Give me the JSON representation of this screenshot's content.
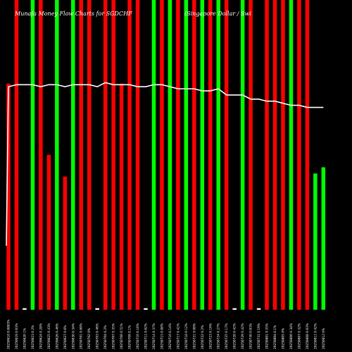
{
  "chart_data": {
    "type": "bar",
    "title_left": "Munafa Money Flow Charts for SGDCHF",
    "title_right": "(Singapore Dollar / Swi",
    "colors": {
      "background": "#000000",
      "up": "#00ff00",
      "down": "#ff0000",
      "line": "#ffffff",
      "text": "#ffffff"
    },
    "ylim": [
      0,
      100
    ],
    "categories": [
      "20250618 0.0003%",
      "20250619 0.63%",
      "20250620 1%",
      "20250623 0.2%",
      "20250624 0.28%",
      "20250625 0.43%",
      "20250626 0.46%",
      "20250627 0.6%",
      "20250630 0.34%",
      "20250701 0.69%",
      "20250702 0%",
      "20250703 0.46%",
      "20250704 0.2%",
      "20250707 0.35%",
      "20250708 0.51%",
      "20250709 0.1%",
      "20250710 0.16%",
      "20250711 0.62%",
      "20250714 0.37%",
      "20250715 0.08%",
      "20250716 0.14%",
      "20250717 0.41%",
      "20250718 0.12%",
      "20250721 0.09%",
      "20250722 0.2%",
      "20250723 0.16%",
      "20250724 0.27%",
      "20250725 0.17%",
      "20250728 0.42%",
      "20250729 0.42%",
      "20250730 0.63%",
      "20250731 0.19%",
      "20250801 0.55%",
      "20250804 0.1%",
      "20250805 0%",
      "20250806 0.34%",
      "20250807 0.32%",
      "20250808 0.63%",
      "20250811 0.42%",
      "20250812 0%"
    ],
    "series": [
      {
        "values": [
          73,
          100,
          0.5,
          100,
          100,
          50,
          100,
          43,
          100,
          100,
          100,
          0.5,
          100,
          100,
          73,
          100,
          100,
          0.5,
          100,
          100,
          100,
          100,
          100,
          100,
          100,
          100,
          100,
          100,
          0.5,
          100,
          100,
          0.5,
          100,
          100,
          100,
          100,
          100,
          100,
          44,
          46
        ],
        "directions": [
          "down",
          "down",
          "flat",
          "up",
          "down",
          "down",
          "up",
          "down",
          "up",
          "down",
          "down",
          "flat",
          "down",
          "down",
          "down",
          "down",
          "down",
          "flat",
          "up",
          "down",
          "up",
          "down",
          "up",
          "down",
          "up",
          "down",
          "up",
          "down",
          "flat",
          "up",
          "down",
          "flat",
          "down",
          "down",
          "down",
          "up",
          "down",
          "down",
          "up",
          "up"
        ]
      },
      {
        "values": [
          1.258,
          1.259,
          1.259,
          1.259,
          1.258,
          1.259,
          1.259,
          1.258,
          1.259,
          1.259,
          1.259,
          1.258,
          1.26,
          1.259,
          1.259,
          1.259,
          1.258,
          1.258,
          1.259,
          1.259,
          1.258,
          1.257,
          1.257,
          1.257,
          1.256,
          1.256,
          1.257,
          1.254,
          1.254,
          1.254,
          1.252,
          1.252,
          1.251,
          1.251,
          1.25,
          1.249,
          1.249,
          1.248,
          1.248,
          1.248
        ],
        "origin": 1.181,
        "ylim": [
          1.15,
          1.3
        ]
      }
    ]
  }
}
